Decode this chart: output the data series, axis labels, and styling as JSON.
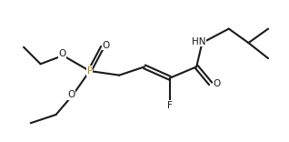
{
  "bg_color": "#ffffff",
  "line_color": "#1a1a1a",
  "P_color": "#b8860b",
  "line_width": 1.5,
  "font_size": 7.5,
  "figsize": [
    3.18,
    1.56
  ],
  "dpi": 100,
  "xlim": [
    0.0,
    9.5
  ],
  "ylim": [
    0.2,
    5.2
  ]
}
